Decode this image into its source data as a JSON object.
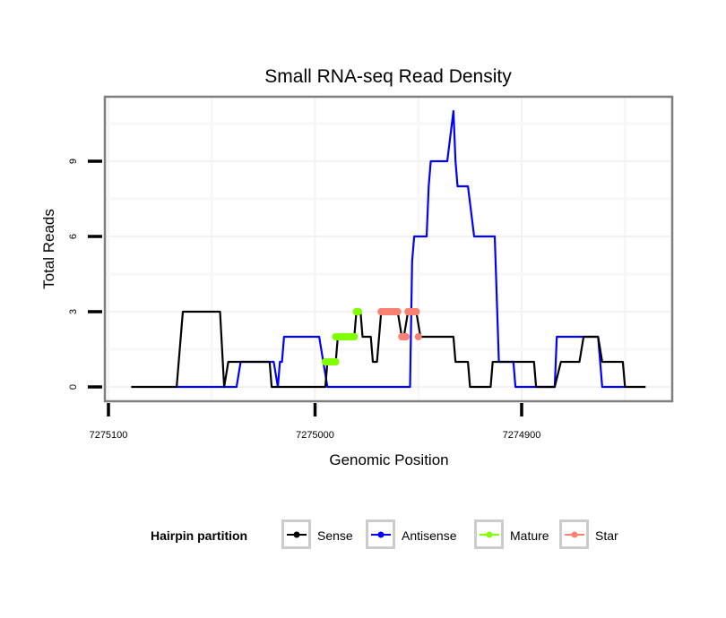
{
  "chart_data": {
    "type": "line",
    "title": "Small RNA-seq Read Density",
    "xlabel": "Genomic Position",
    "ylabel": "Total Reads",
    "x_reversed": true,
    "xlim": [
      7275102,
      7274828
    ],
    "ylim": [
      -0.55,
      11.7
    ],
    "x_ticks": [
      7275100,
      7275000,
      7274900
    ],
    "x_tick_labels": [
      "7275100",
      "7275000",
      "7274900"
    ],
    "y_ticks": [
      0,
      3,
      6,
      9
    ],
    "y_tick_labels": [
      "0",
      "3",
      "6",
      "9"
    ],
    "grid": true,
    "legend": {
      "title": "Hairpin partition",
      "position": "bottom",
      "entries": [
        {
          "name": "Sense",
          "color": "#000000"
        },
        {
          "name": "Antisense",
          "color": "#0000ff"
        },
        {
          "name": "Mature",
          "color": "#7fff00"
        },
        {
          "name": "Star",
          "color": "#fa8072"
        }
      ]
    },
    "series": [
      {
        "name": "Sense",
        "color": "#000000",
        "points": [
          [
            7275089,
            0
          ],
          [
            7275067,
            0
          ],
          [
            7275064,
            3
          ],
          [
            7275046,
            3
          ],
          [
            7275044,
            0
          ],
          [
            7275042,
            1
          ],
          [
            7275022,
            1
          ],
          [
            7275021,
            0
          ],
          [
            7274995,
            0
          ],
          [
            7274994,
            1
          ],
          [
            7274990,
            1
          ],
          [
            7274989,
            2
          ],
          [
            7274981,
            2
          ],
          [
            7274980,
            3
          ],
          [
            7274978,
            3
          ],
          [
            7274977,
            2
          ],
          [
            7274973,
            2
          ],
          [
            7274972,
            1
          ],
          [
            7274970,
            1
          ],
          [
            7274968,
            3
          ],
          [
            7274960,
            3
          ],
          [
            7274958,
            2
          ],
          [
            7274957,
            2
          ],
          [
            7274955,
            3
          ],
          [
            7274951,
            3
          ],
          [
            7274949,
            2
          ],
          [
            7274946,
            2
          ],
          [
            7274933,
            2
          ],
          [
            7274932,
            1
          ],
          [
            7274926,
            1
          ],
          [
            7274925,
            0
          ],
          [
            7274915,
            0
          ],
          [
            7274914,
            1
          ],
          [
            7274894,
            1
          ],
          [
            7274893,
            0
          ],
          [
            7274884,
            0
          ],
          [
            7274881,
            1
          ],
          [
            7274872,
            1
          ],
          [
            7274870,
            2
          ],
          [
            7274863,
            2
          ],
          [
            7274861,
            1
          ],
          [
            7274851,
            1
          ],
          [
            7274850,
            0
          ],
          [
            7274840,
            0
          ]
        ]
      },
      {
        "name": "Antisense",
        "color": "#0000ff",
        "points": [
          [
            7275067,
            0
          ],
          [
            7275038,
            0
          ],
          [
            7275036,
            1
          ],
          [
            7275020,
            1
          ],
          [
            7275018,
            0
          ],
          [
            7275017,
            1
          ],
          [
            7275016,
            1
          ],
          [
            7275015,
            2
          ],
          [
            7274998,
            2
          ],
          [
            7274994,
            0
          ],
          [
            7274954,
            0
          ],
          [
            7274953,
            5
          ],
          [
            7274952,
            6
          ],
          [
            7274946,
            6
          ],
          [
            7274945,
            8
          ],
          [
            7274944,
            9
          ],
          [
            7274936,
            9
          ],
          [
            7274933,
            11
          ],
          [
            7274932,
            9
          ],
          [
            7274931,
            8
          ],
          [
            7274926,
            8
          ],
          [
            7274923,
            6
          ],
          [
            7274913,
            6
          ],
          [
            7274911,
            1
          ],
          [
            7274904,
            1
          ],
          [
            7274903,
            0
          ],
          [
            7274884,
            0
          ],
          [
            7274883,
            2
          ],
          [
            7274863,
            2
          ],
          [
            7274861,
            0
          ],
          [
            7274850,
            0
          ]
        ]
      },
      {
        "name": "Mature",
        "color": "#7fff00",
        "points": [
          [
            7274995,
            1
          ],
          [
            7274994,
            1
          ],
          [
            7274993,
            1
          ],
          [
            7274992,
            1
          ],
          [
            7274991,
            1
          ],
          [
            7274990,
            1
          ],
          [
            7274990,
            2
          ],
          [
            7274989,
            2
          ],
          [
            7274988,
            2
          ],
          [
            7274987,
            2
          ],
          [
            7274986,
            2
          ],
          [
            7274985,
            2
          ],
          [
            7274984,
            2
          ],
          [
            7274983,
            2
          ],
          [
            7274982,
            2
          ],
          [
            7274981,
            2
          ],
          [
            7274980,
            3
          ],
          [
            7274979,
            3
          ]
        ]
      },
      {
        "name": "Star",
        "color": "#fa8072",
        "points": [
          [
            7274968,
            3
          ],
          [
            7274967,
            3
          ],
          [
            7274966,
            3
          ],
          [
            7274965,
            3
          ],
          [
            7274964,
            3
          ],
          [
            7274963,
            3
          ],
          [
            7274962,
            3
          ],
          [
            7274961,
            3
          ],
          [
            7274960,
            3
          ],
          [
            7274958,
            2
          ],
          [
            7274957,
            2
          ],
          [
            7274956,
            2
          ],
          [
            7274955,
            3
          ],
          [
            7274954,
            3
          ],
          [
            7274953,
            3
          ],
          [
            7274952,
            3
          ],
          [
            7274951,
            3
          ],
          [
            7274950,
            2
          ]
        ]
      }
    ]
  }
}
